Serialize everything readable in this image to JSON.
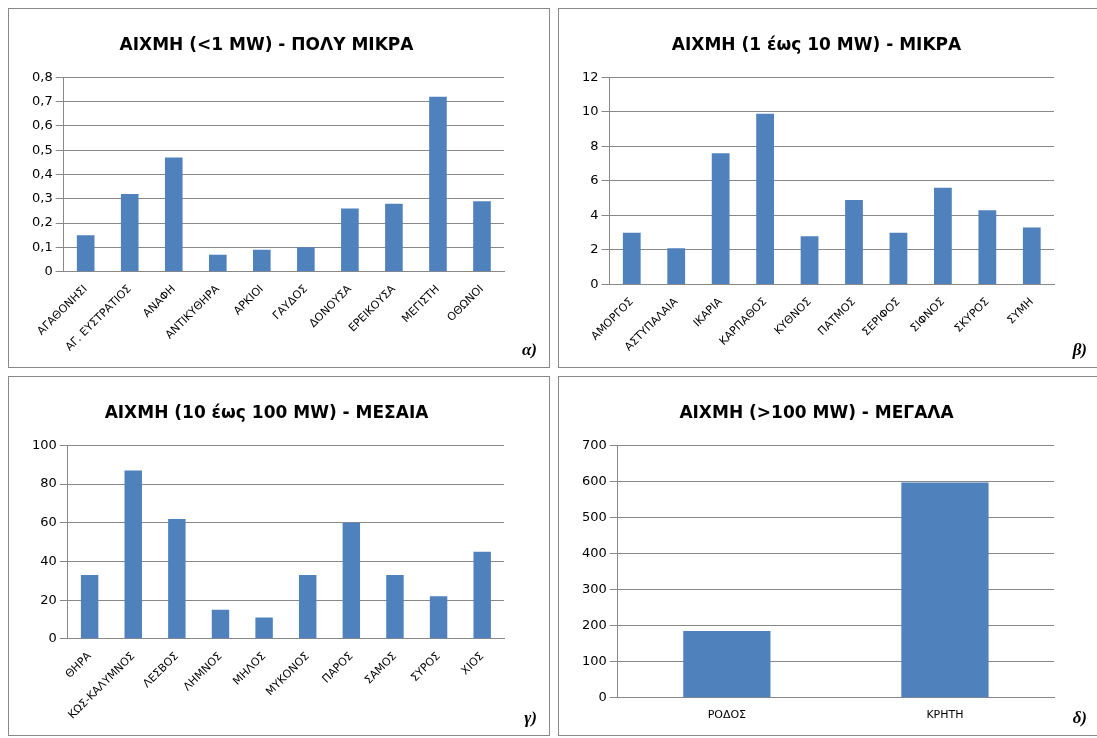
{
  "chart_data": [
    {
      "type": "bar",
      "title": "ΑΙΧΜΗ (<1 MW) - ΠΟΛΥ ΜΙΚΡΑ",
      "categories": [
        "ΑΓΑΘΟΝΗΣΙ",
        "ΑΓ. ΕΥΣΤΡΑΤΙΟΣ",
        "ΑΝΑΦΗ",
        "ΑΝΤΙΚΥΘΗΡΑ",
        "ΑΡΚΙΟΙ",
        "ΓΑΥΔΟΣ",
        "ΔΟΝΟΥΣΑ",
        "ΕΡΕΙΚΟΥΣΑ",
        "ΜΕΓΙΣΤΗ",
        "ΟΘΩΝΟΙ"
      ],
      "values": [
        0.15,
        0.32,
        0.47,
        0.07,
        0.09,
        0.1,
        0.26,
        0.28,
        0.72,
        0.29
      ],
      "color": "#4f81bd",
      "ylim": [
        0,
        0.8
      ],
      "yticks": [
        0,
        {
          "value": 0.1,
          "label": "0,1"
        },
        {
          "value": 0.2,
          "label": "0,2"
        },
        {
          "value": 0.3,
          "label": "0,3"
        },
        {
          "value": 0.4,
          "label": "0,4"
        },
        {
          "value": 0.5,
          "label": "0,5"
        },
        {
          "value": 0.6,
          "label": "0,6"
        },
        {
          "value": 0.7,
          "label": "0,7"
        },
        {
          "value": 0.8,
          "label": "0,8"
        }
      ],
      "grid": "y",
      "annotations": [
        "α)"
      ]
    },
    {
      "type": "bar",
      "title": "ΑΙΧΜΗ (1 έως 10 MW) - ΜΙΚΡΑ",
      "categories": [
        "ΑΜΟΡΓΟΣ",
        "ΑΣΤΥΠΑΛΑΙΑ",
        "ΙΚΑΡΙΑ",
        "ΚΑΡΠΑΘΟΣ",
        "ΚΥΘΝΟΣ",
        "ΠΑΤΜΟΣ",
        "ΣΕΡΙΦΟΣ",
        "ΣΙΦΝΟΣ",
        "ΣΚΥΡΟΣ",
        "ΣΥΜΗ"
      ],
      "values": [
        3.0,
        2.1,
        7.6,
        9.9,
        2.8,
        4.9,
        3.0,
        5.6,
        4.3,
        3.3
      ],
      "color": "#4f81bd",
      "ylim": [
        0,
        12
      ],
      "yticks": [
        0,
        2,
        4,
        6,
        8,
        10,
        12
      ],
      "grid": "y",
      "annotations": [
        "β)"
      ]
    },
    {
      "type": "bar",
      "title": "ΑΙΧΜΗ (10 έως 100 MW) - ΜΕΣΑΙΑ",
      "categories": [
        "ΘΗΡΑ",
        "ΚΩΣ-ΚΑΛΥΜΝΟΣ",
        "ΛΕΣΒΟΣ",
        "ΛΗΜΝΟΣ",
        "ΜΗΛΟΣ",
        "ΜΥΚΟΝΟΣ",
        "ΠΑΡΟΣ",
        "ΣΑΜΟΣ",
        "ΣΥΡΟΣ",
        "ΧΙΟΣ"
      ],
      "values": [
        33,
        87,
        62,
        15,
        11,
        33,
        60,
        33,
        22,
        45
      ],
      "color": "#4f81bd",
      "ylim": [
        0,
        100
      ],
      "yticks": [
        0,
        20,
        40,
        60,
        80,
        100
      ],
      "grid": "y",
      "annotations": [
        "γ)"
      ]
    },
    {
      "type": "bar",
      "title": "ΑΙΧΜΗ (>100 MW) - ΜΕΓΑΛΑ",
      "categories": [
        "ΡΟΔΟΣ",
        "ΚΡΗΤΗ"
      ],
      "values": [
        185,
        597
      ],
      "color": "#4f81bd",
      "ylim": [
        0,
        700
      ],
      "yticks": [
        0,
        100,
        200,
        300,
        400,
        500,
        600,
        700
      ],
      "grid": "y",
      "annotations": [
        "δ)"
      ]
    }
  ]
}
